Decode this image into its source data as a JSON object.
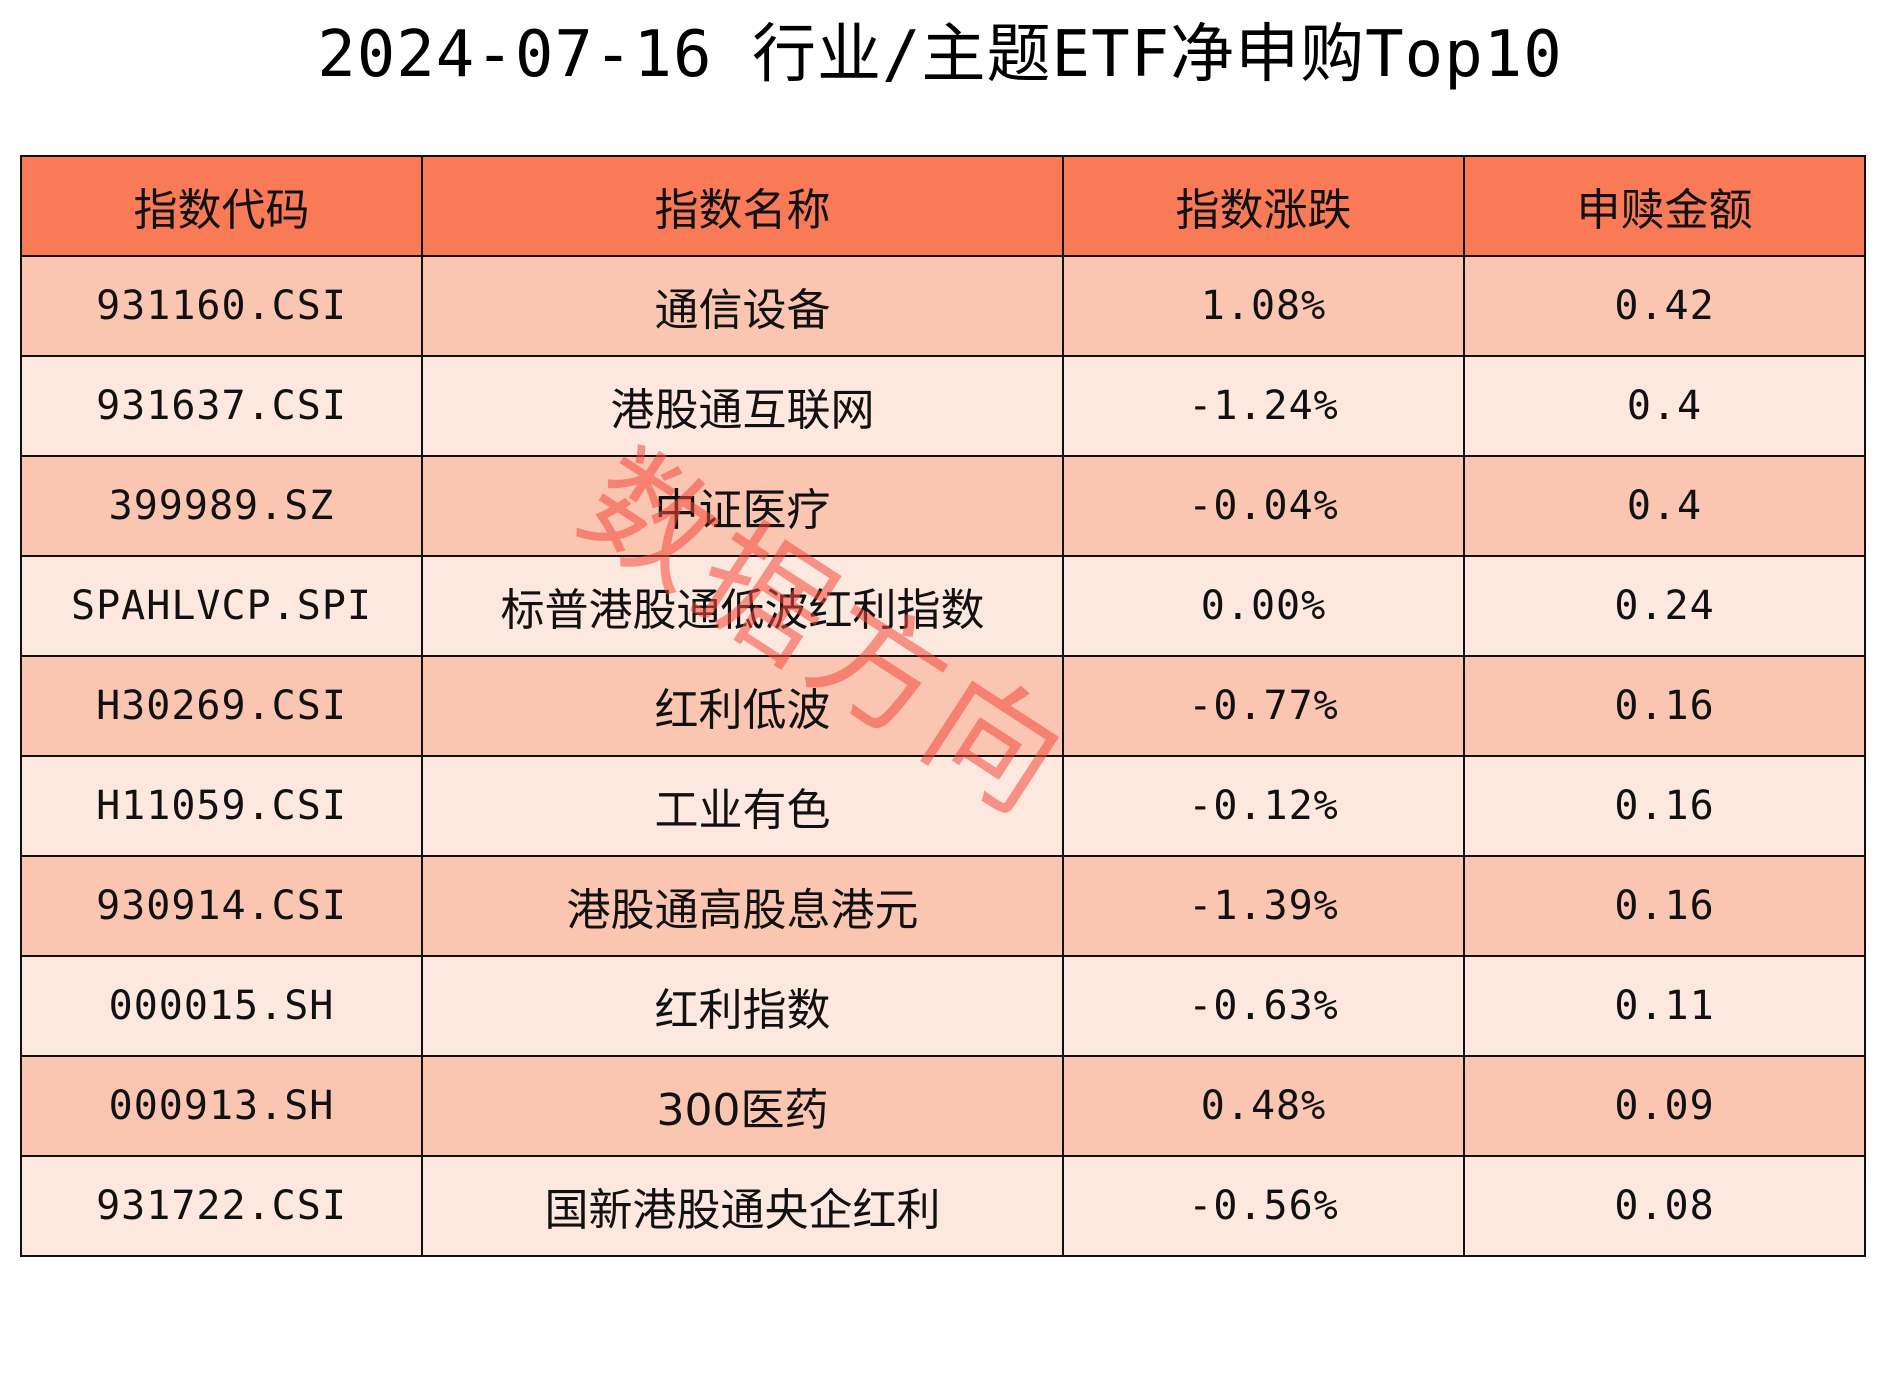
{
  "title": "2024-07-16 行业/主题ETF净申购Top10",
  "watermark": "数据方向",
  "colors": {
    "header_bg": "#f97a57",
    "row_odd_bg": "#fac5b1",
    "row_even_bg": "#fde8df",
    "watermark": "#f2483c"
  },
  "table": {
    "headers": [
      "指数代码",
      "指数名称",
      "指数涨跌",
      "申赎金额"
    ],
    "rows": [
      [
        "931160.CSI",
        "通信设备",
        "1.08%",
        "0.42"
      ],
      [
        "931637.CSI",
        "港股通互联网",
        "-1.24%",
        "0.4"
      ],
      [
        "399989.SZ",
        "中证医疗",
        "-0.04%",
        "0.4"
      ],
      [
        "SPAHLVCP.SPI",
        "标普港股通低波红利指数",
        "0.00%",
        "0.24"
      ],
      [
        "H30269.CSI",
        "红利低波",
        "-0.77%",
        "0.16"
      ],
      [
        "H11059.CSI",
        "工业有色",
        "-0.12%",
        "0.16"
      ],
      [
        "930914.CSI",
        "港股通高股息港元",
        "-1.39%",
        "0.16"
      ],
      [
        "000015.SH",
        "红利指数",
        "-0.63%",
        "0.11"
      ],
      [
        "000913.SH",
        "300医药",
        "0.48%",
        "0.09"
      ],
      [
        "931722.CSI",
        "国新港股通央企红利",
        "-0.56%",
        "0.08"
      ]
    ]
  }
}
